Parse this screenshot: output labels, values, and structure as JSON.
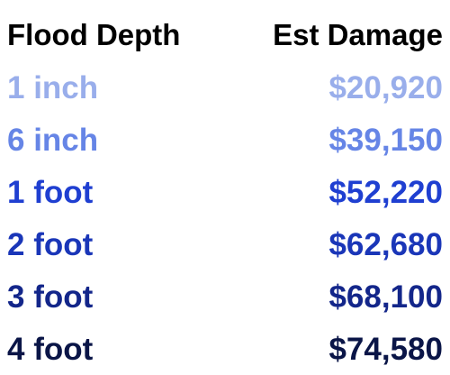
{
  "table": {
    "headers": [
      "Flood Depth",
      "Est Damage"
    ],
    "rows": [
      {
        "depth": "1 inch",
        "damage": "$20,920",
        "color": "#99AEEB"
      },
      {
        "depth": "6 inch",
        "damage": "$39,150",
        "color": "#6685E6"
      },
      {
        "depth": "1 foot",
        "damage": "$52,220",
        "color": "#1F3FD1"
      },
      {
        "depth": "2 foot",
        "damage": "$62,680",
        "color": "#1A36B8"
      },
      {
        "depth": "3 foot",
        "damage": "$68,100",
        "color": "#13268A"
      },
      {
        "depth": "4 foot",
        "damage": "$74,580",
        "color": "#0A1547"
      }
    ]
  }
}
